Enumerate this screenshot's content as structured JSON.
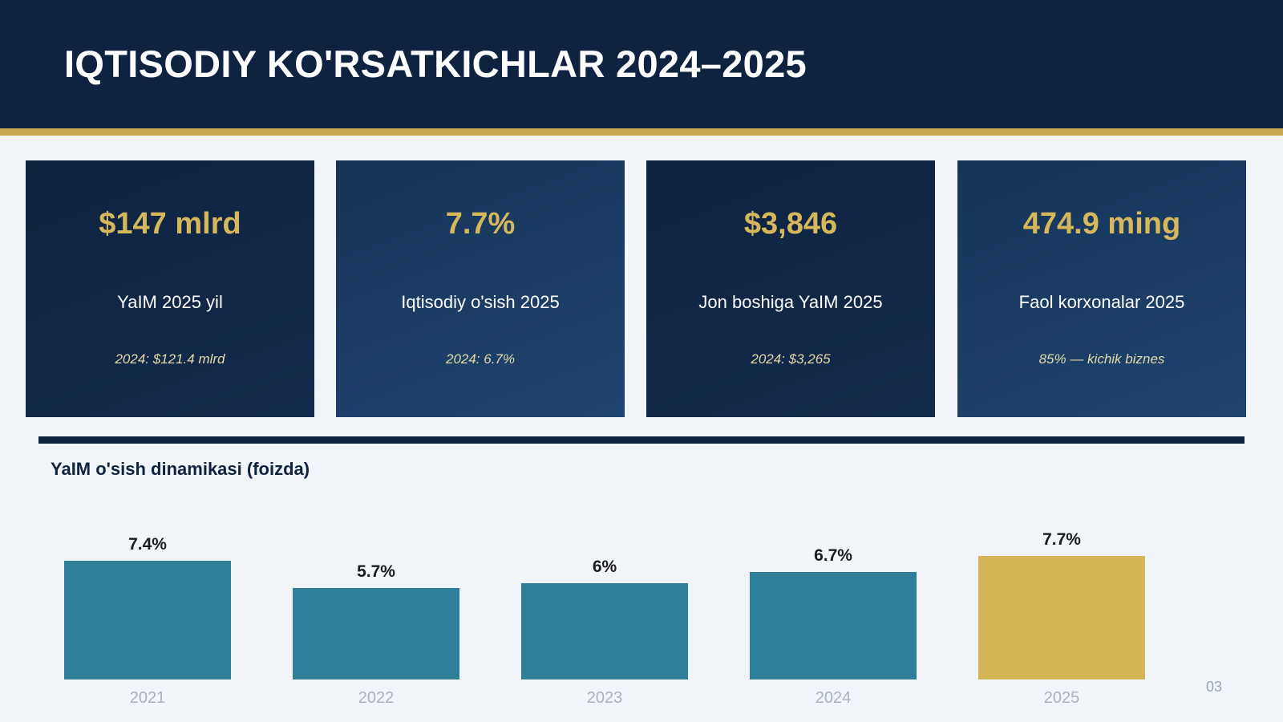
{
  "header": {
    "title": "IQTISODIY KO'RSATKICHLAR 2024–2025"
  },
  "cards": [
    {
      "value": "$147 mlrd",
      "label": "YaIM 2025 yil",
      "note": "2024: $121.4 mlrd"
    },
    {
      "value": "7.7%",
      "label": "Iqtisodiy o'sish 2025",
      "note": "2024: 6.7%"
    },
    {
      "value": "$3,846",
      "label": "Jon boshiga YaIM 2025",
      "note": "2024: $3,265"
    },
    {
      "value": "474.9 ming",
      "label": "Faol korxonalar 2025",
      "note": "85% — kichik biznes"
    }
  ],
  "chart_data": {
    "type": "bar",
    "title": "YaIM o'sish dinamikasi (foizda)",
    "categories": [
      "2021",
      "2022",
      "2023",
      "2024",
      "2025"
    ],
    "values": [
      7.4,
      5.7,
      6,
      6.7,
      7.7
    ],
    "data_labels": [
      "7.4%",
      "5.7%",
      "6%",
      "6.7%",
      "7.7%"
    ],
    "highlight_index": 4,
    "colors": {
      "bar": "#2f7f9a",
      "highlight": "#d4b455",
      "label": "#1c1c1c",
      "tick": "#a9b3c0"
    },
    "grid": false
  },
  "footer": {
    "page_number": "03"
  }
}
